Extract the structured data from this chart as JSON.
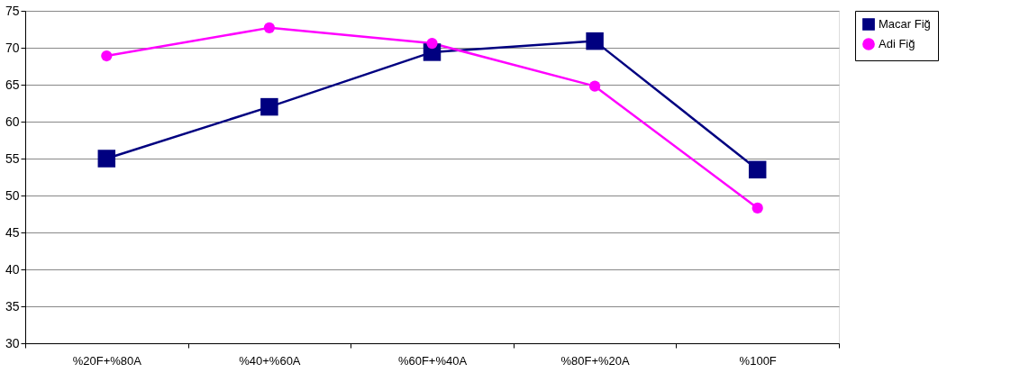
{
  "chart_data": {
    "type": "line",
    "categories": [
      "%20F+%80A",
      "%40+%60A",
      "%60F+%40A",
      "%80F+%20A",
      "%100F"
    ],
    "series": [
      {
        "name": "Macar Fiğ",
        "color": "#000080",
        "marker": "square",
        "values": [
          55.0,
          62.0,
          69.4,
          70.9,
          53.5
        ]
      },
      {
        "name": "Adi Fiğ",
        "color": "#ff00ff",
        "marker": "circle",
        "values": [
          68.9,
          72.7,
          70.6,
          64.8,
          48.3
        ]
      }
    ],
    "ylim": [
      30,
      75
    ],
    "yticks": [
      30,
      35,
      40,
      45,
      50,
      55,
      60,
      65,
      70,
      75
    ],
    "grid": "y",
    "legend": "right",
    "line_style": "solid"
  }
}
